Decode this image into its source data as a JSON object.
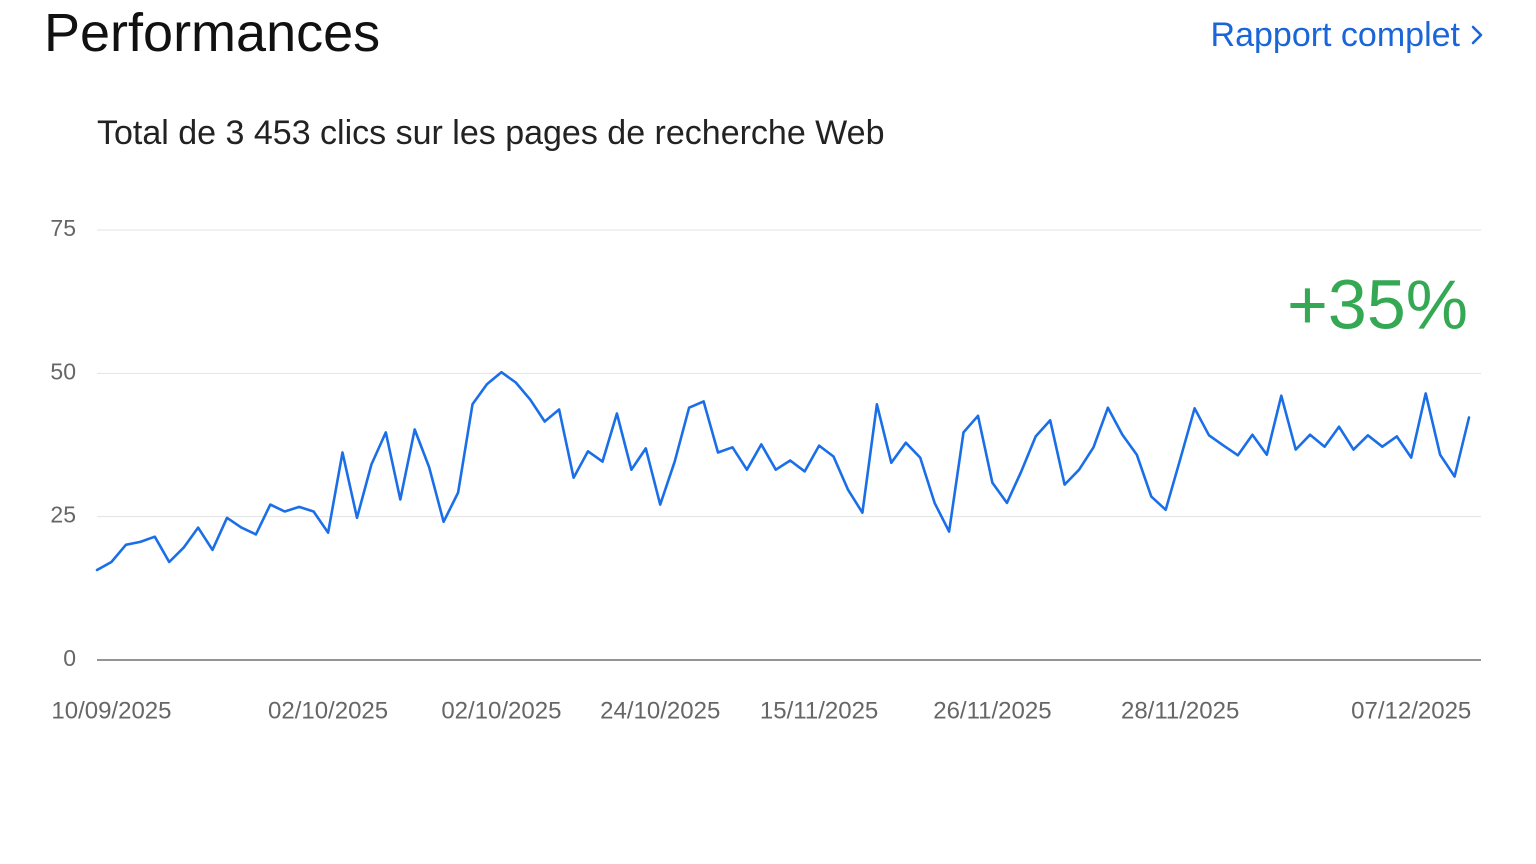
{
  "header": {
    "title": "Performances",
    "link": "Rapport complet"
  },
  "chart_data": {
    "type": "line",
    "title": "Total de 3 453 clics sur les pages de recherche Web",
    "annotation": "+35%",
    "color": "#1a6fe8",
    "annotation_color": "#34a853",
    "grid": true,
    "ylim": [
      0,
      75
    ],
    "yticks": [
      0,
      25,
      50,
      75
    ],
    "categories": [
      null,
      "10/09/2025",
      null,
      null,
      null,
      null,
      null,
      null,
      null,
      null,
      null,
      null,
      null,
      null,
      null,
      null,
      "02/10/2025",
      null,
      null,
      null,
      null,
      null,
      null,
      null,
      null,
      null,
      null,
      null,
      "02/10/2025",
      null,
      null,
      null,
      null,
      null,
      null,
      null,
      null,
      null,
      null,
      "24/10/2025",
      null,
      null,
      null,
      null,
      null,
      null,
      null,
      null,
      null,
      null,
      "15/11/2025",
      null,
      null,
      null,
      null,
      null,
      null,
      null,
      null,
      null,
      null,
      null,
      "26/11/2025",
      null,
      null,
      null,
      null,
      null,
      null,
      null,
      null,
      null,
      null,
      null,
      null,
      "28/11/2025",
      null,
      null,
      null,
      null,
      null,
      null,
      null,
      null,
      null,
      null,
      null,
      null,
      null,
      null,
      null,
      "07/12/2025",
      null,
      null,
      null,
      null
    ],
    "values": [
      15.7,
      17.1,
      20.1,
      20.6,
      21.5,
      17.1,
      19.6,
      23.1,
      19.2,
      24.8,
      23.1,
      21.9,
      27.1,
      25.9,
      26.7,
      25.9,
      22.2,
      36.2,
      24.8,
      34.1,
      39.7,
      28.0,
      40.2,
      33.6,
      24.1,
      29.2,
      44.6,
      48.1,
      50.2,
      48.4,
      45.4,
      41.6,
      43.7,
      31.8,
      36.4,
      34.6,
      43.0,
      33.2,
      36.9,
      27.1,
      34.6,
      44.0,
      45.1,
      36.2,
      37.1,
      33.2,
      37.6,
      33.2,
      34.8,
      32.9,
      37.4,
      35.5,
      29.7,
      25.7,
      44.6,
      34.4,
      37.9,
      35.3,
      27.4,
      22.4,
      39.7,
      42.6,
      30.9,
      27.4,
      32.9,
      39.0,
      41.8,
      30.6,
      33.2,
      37.1,
      44.0,
      39.3,
      35.8,
      28.5,
      26.2,
      35.0,
      43.9,
      39.2,
      37.4,
      35.7,
      39.3,
      35.8,
      46.1,
      36.7,
      39.3,
      37.2,
      40.7,
      36.7,
      39.2,
      37.2,
      39.0,
      35.3,
      46.5,
      35.8,
      32.0,
      42.3
    ]
  }
}
